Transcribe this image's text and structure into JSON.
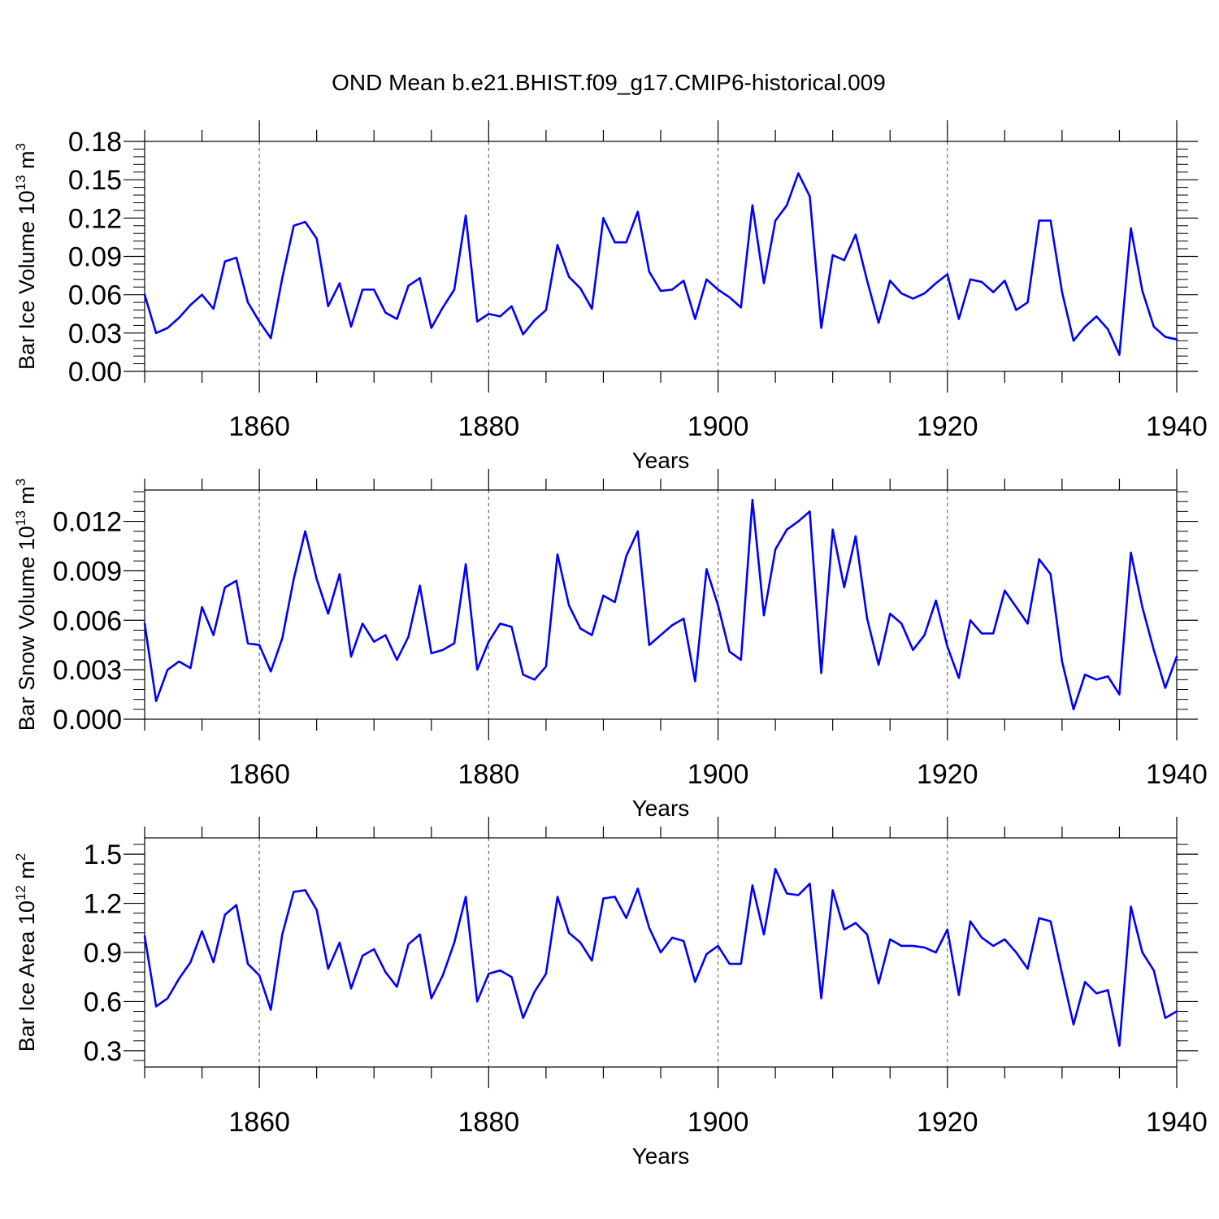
{
  "title": "OND Mean b.e21.BHIST.f09_g17.CMIP6-historical.009",
  "colors": {
    "series": "#0000ff",
    "axes": "#000000",
    "grid": "#000000"
  },
  "chart_data": [
    {
      "type": "line",
      "xlabel": "Years",
      "ylabel": {
        "prefix": "Bar Ice Volume 10",
        "exponent": "13",
        "unit": " m",
        "unit_exponent": "3"
      },
      "xlim": [
        1850,
        1940
      ],
      "ylim": [
        0.0,
        0.18
      ],
      "x_major_ticks": [
        1860,
        1880,
        1900,
        1920,
        1940
      ],
      "x_tick_labels": [
        "1860",
        "1880",
        "1900",
        "1920",
        "1940"
      ],
      "y_ticks": [
        0.0,
        0.03,
        0.06,
        0.09,
        0.12,
        0.15,
        0.18
      ],
      "y_tick_labels": [
        "0.00",
        "0.03",
        "0.06",
        "0.09",
        "0.12",
        "0.15",
        "0.18"
      ],
      "grid": "dashed vertical at major x ticks",
      "series": [
        {
          "x_start": 1850,
          "values": [
            0.06,
            0.03,
            0.034,
            0.042,
            0.052,
            0.06,
            0.049,
            0.086,
            0.089,
            0.054,
            0.039,
            0.026,
            0.073,
            0.114,
            0.117,
            0.104,
            0.051,
            0.069,
            0.035,
            0.064,
            0.064,
            0.046,
            0.041,
            0.067,
            0.073,
            0.034,
            0.05,
            0.064,
            0.122,
            0.039,
            0.045,
            0.043,
            0.051,
            0.029,
            0.04,
            0.048,
            0.099,
            0.074,
            0.065,
            0.049,
            0.12,
            0.101,
            0.101,
            0.125,
            0.078,
            0.063,
            0.064,
            0.071,
            0.041,
            0.072,
            0.064,
            0.058,
            0.05,
            0.13,
            0.069,
            0.118,
            0.13,
            0.155,
            0.137,
            0.034,
            0.091,
            0.087,
            0.107,
            0.071,
            0.038,
            0.071,
            0.061,
            0.057,
            0.061,
            0.069,
            0.076,
            0.041,
            0.072,
            0.07,
            0.062,
            0.071,
            0.048,
            0.054,
            0.118,
            0.118,
            0.062,
            0.024,
            0.035,
            0.043,
            0.033,
            0.013,
            0.112,
            0.063,
            0.035,
            0.027,
            0.025
          ]
        }
      ]
    },
    {
      "type": "line",
      "xlabel": "Years",
      "ylabel": {
        "prefix": "Bar Snow Volume 10",
        "exponent": "13",
        "unit": " m",
        "unit_exponent": "3"
      },
      "xlim": [
        1850,
        1940
      ],
      "ylim": [
        0.0,
        0.0139
      ],
      "x_major_ticks": [
        1860,
        1880,
        1900,
        1920,
        1940
      ],
      "x_tick_labels": [
        "1860",
        "1880",
        "1900",
        "1920",
        "1940"
      ],
      "y_ticks": [
        0.0,
        0.003,
        0.006,
        0.009,
        0.012
      ],
      "y_tick_labels": [
        "0.000",
        "0.003",
        "0.006",
        "0.009",
        "0.012"
      ],
      "grid": "dashed vertical at major x ticks",
      "series": [
        {
          "x_start": 1850,
          "values": [
            0.0058,
            0.0011,
            0.003,
            0.0035,
            0.0031,
            0.0068,
            0.0051,
            0.008,
            0.0084,
            0.0046,
            0.0045,
            0.0029,
            0.0049,
            0.0085,
            0.0114,
            0.0085,
            0.0064,
            0.0088,
            0.0038,
            0.0058,
            0.0047,
            0.0051,
            0.0036,
            0.005,
            0.0081,
            0.004,
            0.0042,
            0.0046,
            0.0094,
            0.003,
            0.0047,
            0.0058,
            0.0056,
            0.0027,
            0.0024,
            0.0032,
            0.01,
            0.0069,
            0.0055,
            0.0051,
            0.0075,
            0.0071,
            0.0099,
            0.0114,
            0.0045,
            0.0051,
            0.0057,
            0.0061,
            0.0023,
            0.0091,
            0.0069,
            0.0041,
            0.0036,
            0.0133,
            0.0063,
            0.0103,
            0.0115,
            0.012,
            0.0126,
            0.0028,
            0.0115,
            0.008,
            0.0111,
            0.0061,
            0.0033,
            0.0064,
            0.0058,
            0.0042,
            0.0051,
            0.0072,
            0.0044,
            0.0025,
            0.006,
            0.0052,
            0.0052,
            0.0078,
            0.0068,
            0.0058,
            0.0097,
            0.0088,
            0.0035,
            0.0006,
            0.0027,
            0.0024,
            0.0026,
            0.0015,
            0.0101,
            0.0068,
            0.0042,
            0.0019,
            0.0038
          ]
        }
      ]
    },
    {
      "type": "line",
      "xlabel": "Years",
      "ylabel": {
        "prefix": "Bar Ice Area 10",
        "exponent": "12",
        "unit": " m",
        "unit_exponent": "2"
      },
      "xlim": [
        1850,
        1940
      ],
      "ylim": [
        0.2,
        1.6
      ],
      "x_major_ticks": [
        1860,
        1880,
        1900,
        1920,
        1940
      ],
      "x_tick_labels": [
        "1860",
        "1880",
        "1900",
        "1920",
        "1940"
      ],
      "y_ticks": [
        0.3,
        0.6,
        0.9,
        1.2,
        1.5
      ],
      "y_tick_labels": [
        "0.3",
        "0.6",
        "0.9",
        "1.2",
        "1.5"
      ],
      "grid": "dashed vertical at major x ticks",
      "series": [
        {
          "x_start": 1850,
          "values": [
            1.0,
            0.57,
            0.62,
            0.74,
            0.84,
            1.03,
            0.84,
            1.13,
            1.19,
            0.83,
            0.76,
            0.55,
            1.01,
            1.27,
            1.28,
            1.16,
            0.8,
            0.96,
            0.68,
            0.88,
            0.92,
            0.78,
            0.69,
            0.95,
            1.01,
            0.62,
            0.76,
            0.96,
            1.24,
            0.6,
            0.77,
            0.79,
            0.75,
            0.5,
            0.66,
            0.77,
            1.24,
            1.02,
            0.96,
            0.85,
            1.23,
            1.24,
            1.11,
            1.29,
            1.05,
            0.9,
            0.99,
            0.97,
            0.72,
            0.89,
            0.94,
            0.83,
            0.83,
            1.31,
            1.01,
            1.41,
            1.26,
            1.25,
            1.32,
            0.62,
            1.28,
            1.04,
            1.08,
            1.01,
            0.71,
            0.98,
            0.94,
            0.94,
            0.93,
            0.9,
            1.04,
            0.64,
            1.09,
            0.99,
            0.94,
            0.98,
            0.9,
            0.8,
            1.11,
            1.09,
            0.77,
            0.46,
            0.72,
            0.65,
            0.67,
            0.33,
            1.18,
            0.9,
            0.79,
            0.5,
            0.54
          ]
        }
      ]
    }
  ]
}
